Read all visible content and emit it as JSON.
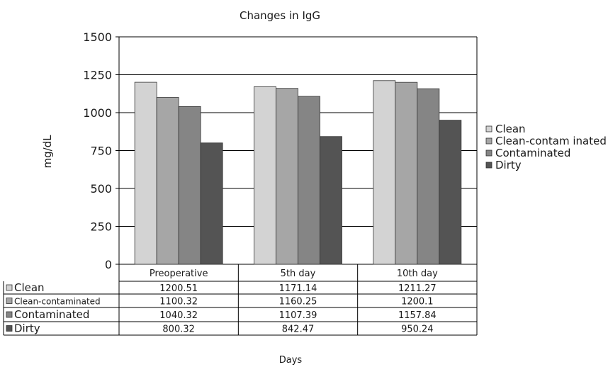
{
  "chart_data": {
    "type": "bar",
    "title": "Changes in IgG",
    "xlabel": "Days",
    "ylabel": "mg/dL",
    "ylim": [
      0,
      1500
    ],
    "yticks": [
      0,
      250,
      500,
      750,
      1000,
      1250,
      1500
    ],
    "grid": true,
    "legend_position": "right",
    "categories": [
      "Preoperative",
      "5th day",
      "10th day"
    ],
    "series": [
      {
        "name": "Clean",
        "table_label": "Clean",
        "legend_label": "Clean",
        "color": "#d3d3d3",
        "values": [
          1200.51,
          1171.14,
          1211.27
        ]
      },
      {
        "name": "Clean-contaminated",
        "table_label": "Clean-contaminated",
        "legend_label": "Clean-contam inated",
        "color": "#a6a6a6",
        "values": [
          1100.32,
          1160.25,
          1200.1
        ]
      },
      {
        "name": "Contaminated",
        "table_label": "Contaminated",
        "legend_label": "Contaminated",
        "color": "#858585",
        "values": [
          1040.32,
          1107.39,
          1157.84
        ]
      },
      {
        "name": "Dirty",
        "table_label": "Dirty",
        "legend_label": "Dirty",
        "color": "#545454",
        "values": [
          800.32,
          842.47,
          950.24
        ]
      }
    ]
  }
}
